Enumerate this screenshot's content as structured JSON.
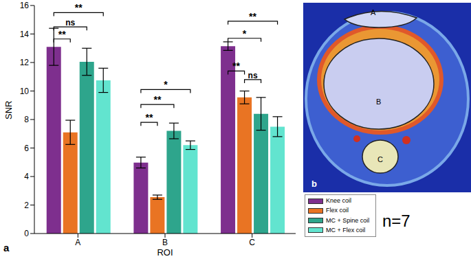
{
  "chart_data": {
    "type": "bar",
    "categories": [
      "A",
      "B",
      "C"
    ],
    "x_label": "ROI",
    "y_label": "SNR",
    "ylim": [
      0,
      16
    ],
    "yticks": [
      0,
      2,
      4,
      6,
      8,
      10,
      12,
      14,
      16
    ],
    "grid": false,
    "series": [
      {
        "name": "Knee coil",
        "color": "#7e2f8e",
        "values": [
          13.1,
          4.98,
          13.15
        ],
        "errors": [
          1.3,
          0.38,
          0.3
        ]
      },
      {
        "name": "Flex coil",
        "color": "#e97423",
        "values": [
          7.1,
          2.55,
          9.55
        ],
        "errors": [
          0.85,
          0.15,
          0.45
        ]
      },
      {
        "name": "MC + Spine coil",
        "color": "#2ea58c",
        "values": [
          12.05,
          7.2,
          8.4
        ],
        "errors": [
          0.95,
          0.55,
          1.15
        ]
      },
      {
        "name": "MC + Flex coil",
        "color": "#62e4cf",
        "values": [
          10.75,
          6.2,
          7.5
        ],
        "errors": [
          0.85,
          0.3,
          0.7
        ]
      }
    ],
    "significance": [
      {
        "category": "A",
        "from": "Knee coil",
        "to": "Flex coil",
        "label": "**",
        "y": 13.65
      },
      {
        "category": "A",
        "from": "Knee coil",
        "to": "MC + Spine coil",
        "label": "ns",
        "y": 14.5
      },
      {
        "category": "A",
        "from": "Knee coil",
        "to": "MC + Flex coil",
        "label": "**",
        "y": 15.5
      },
      {
        "category": "B",
        "from": "Knee coil",
        "to": "Flex coil",
        "label": "**",
        "y": 7.8
      },
      {
        "category": "B",
        "from": "Knee coil",
        "to": "MC + Spine coil",
        "label": "**",
        "y": 9.05
      },
      {
        "category": "B",
        "from": "Knee coil",
        "to": "MC + Flex coil",
        "label": "*",
        "y": 10.1
      },
      {
        "category": "C",
        "from": "Knee coil",
        "to": "Flex coil",
        "label": "**",
        "y": 11.4
      },
      {
        "category": "C",
        "from": "Flex coil",
        "to": "MC + Spine coil",
        "label": "ns",
        "y": 10.8
      },
      {
        "category": "C",
        "from": "Knee coil",
        "to": "MC + Spine coil",
        "label": "*",
        "y": 13.7
      },
      {
        "category": "C",
        "from": "Knee coil",
        "to": "MC + Flex coil",
        "label": "**",
        "y": 14.9
      }
    ],
    "panel_label": "a",
    "annotation": "n=7",
    "image_panel": {
      "label": "b",
      "roi_labels": [
        "A",
        "B",
        "C"
      ]
    }
  }
}
